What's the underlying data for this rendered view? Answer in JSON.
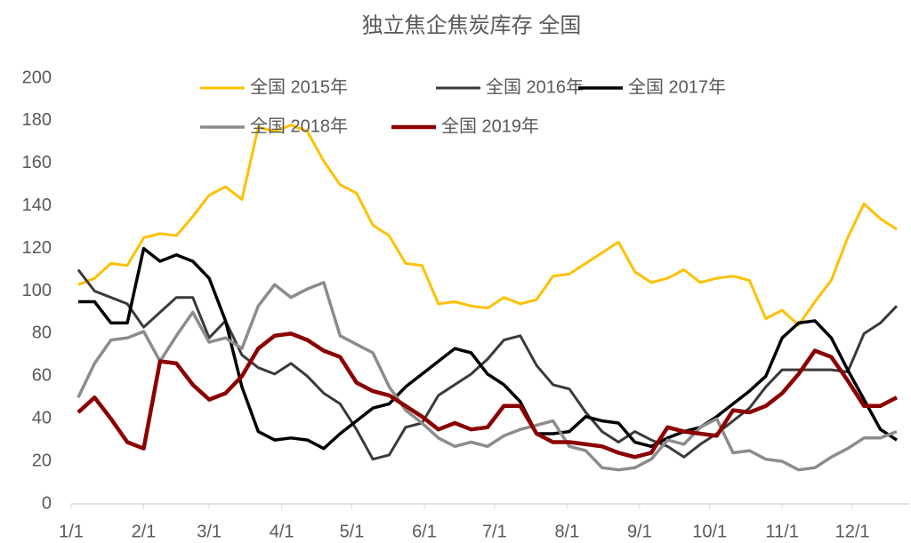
{
  "chart_data": {
    "type": "line",
    "title": "独立焦企焦炭库存 全国",
    "x": [
      3,
      10,
      17,
      24,
      31,
      38,
      45,
      52,
      59,
      66,
      73,
      80,
      87,
      94,
      101,
      108,
      115,
      122,
      129,
      136,
      143,
      150,
      157,
      164,
      171,
      178,
      185,
      192,
      199,
      206,
      213,
      220,
      227,
      234,
      241,
      248,
      255,
      262,
      269,
      276,
      283,
      290,
      297,
      304,
      311,
      318,
      325,
      332,
      339,
      346,
      353
    ],
    "xlim": [
      0,
      358
    ],
    "xticks": [
      {
        "value": 0,
        "label": "1/1"
      },
      {
        "value": 31,
        "label": "2/1"
      },
      {
        "value": 59,
        "label": "3/1"
      },
      {
        "value": 90,
        "label": "4/1"
      },
      {
        "value": 120,
        "label": "5/1"
      },
      {
        "value": 151,
        "label": "6/1"
      },
      {
        "value": 181,
        "label": "7/1"
      },
      {
        "value": 212,
        "label": "8/1"
      },
      {
        "value": 243,
        "label": "9/1"
      },
      {
        "value": 273,
        "label": "10/1"
      },
      {
        "value": 304,
        "label": "11/1"
      },
      {
        "value": 334,
        "label": "12/1"
      }
    ],
    "ylim": [
      0,
      200
    ],
    "yticks": [
      0,
      20,
      40,
      60,
      80,
      100,
      120,
      140,
      160,
      180,
      200
    ],
    "series": [
      {
        "name": "全国 2015年",
        "color": "#ffc000",
        "values": [
          103,
          106,
          113,
          112,
          125,
          127,
          126,
          135,
          145,
          149,
          143,
          177,
          175,
          178,
          175,
          161,
          150,
          146,
          131,
          126,
          113,
          112,
          94,
          95,
          93,
          92,
          97,
          94,
          96,
          107,
          108,
          113,
          118,
          123,
          109,
          104,
          106,
          110,
          104,
          106,
          107,
          105,
          87,
          91,
          84,
          95,
          105,
          125,
          141,
          134,
          129
        ]
      },
      {
        "name": "全国 2016年",
        "color": "#3a3a3a",
        "values": [
          110,
          100,
          97,
          94,
          83,
          90,
          97,
          97,
          78,
          86,
          70,
          64,
          61,
          66,
          60,
          52,
          47,
          35,
          21,
          23,
          36,
          38,
          51,
          56,
          61,
          68,
          77,
          79,
          65,
          56,
          54,
          43,
          34,
          29,
          34,
          30,
          27,
          22,
          28,
          33,
          39,
          45,
          55,
          63,
          63,
          63,
          63,
          62,
          80,
          85,
          93
        ]
      },
      {
        "name": "全国 2017年",
        "color": "#000000",
        "values": [
          95,
          95,
          85,
          85,
          120,
          114,
          117,
          114,
          106,
          86,
          55,
          34,
          30,
          31,
          30,
          26,
          33,
          39,
          45,
          47,
          55,
          61,
          67,
          73,
          71,
          61,
          56,
          48,
          33,
          33,
          34,
          41,
          39,
          38,
          29,
          27,
          31,
          34,
          36,
          41,
          47,
          53,
          60,
          78,
          85,
          86,
          78,
          63,
          49,
          35,
          30
        ]
      },
      {
        "name": "全国 2018年",
        "color": "#8c8c8c",
        "values": [
          50,
          66,
          77,
          78,
          81,
          67,
          79,
          90,
          76,
          78,
          73,
          93,
          103,
          97,
          101,
          104,
          79,
          75,
          71,
          55,
          44,
          38,
          31,
          27,
          29,
          27,
          32,
          35,
          37,
          39,
          27,
          25,
          17,
          16,
          17,
          21,
          30,
          28,
          36,
          40,
          24,
          25,
          21,
          20,
          16,
          17,
          22,
          26,
          31,
          31,
          34
        ]
      },
      {
        "name": "全国 2019年",
        "color": "#8b0000",
        "values": [
          43,
          50,
          40,
          29,
          26,
          67,
          66,
          56,
          49,
          52,
          60,
          73,
          79,
          80,
          77,
          72,
          69,
          57,
          53,
          51,
          46,
          41,
          35,
          38,
          35,
          36,
          46,
          46,
          33,
          29,
          29,
          28,
          27,
          24,
          22,
          24,
          36,
          34,
          33,
          32,
          44,
          43,
          46,
          52,
          61,
          72,
          69,
          58,
          46,
          46,
          50
        ]
      }
    ]
  }
}
